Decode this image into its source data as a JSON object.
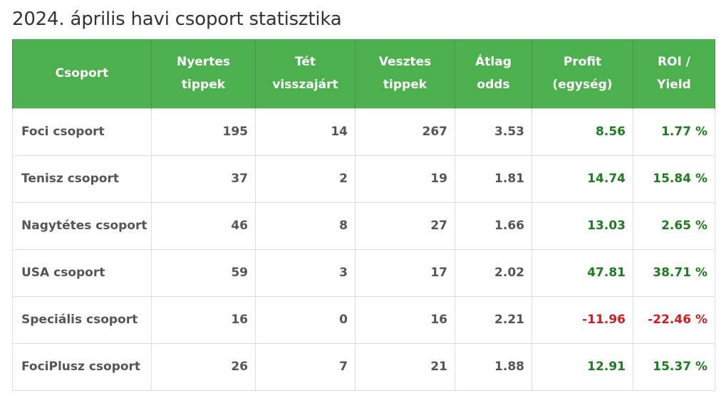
{
  "title": "2024. április havi csoport statisztika",
  "table": {
    "headers": [
      [
        "Csoport"
      ],
      [
        "Nyertes",
        "tippek"
      ],
      [
        "Tét",
        "visszajárt"
      ],
      [
        "Vesztes",
        "tippek"
      ],
      [
        "Átlag",
        "odds"
      ],
      [
        "Profit",
        "(egység)"
      ],
      [
        "ROI /",
        "Yield"
      ]
    ],
    "rows": [
      {
        "group": "Foci csoport",
        "won": "195",
        "void": "14",
        "lost": "267",
        "odds": "3.53",
        "profit": "8.56",
        "roi": "1.77 %",
        "status": "positive"
      },
      {
        "group": "Tenisz csoport",
        "won": "37",
        "void": "2",
        "lost": "19",
        "odds": "1.81",
        "profit": "14.74",
        "roi": "15.84 %",
        "status": "positive"
      },
      {
        "group": "Nagytétes csoport",
        "won": "46",
        "void": "8",
        "lost": "27",
        "odds": "1.66",
        "profit": "13.03",
        "roi": "2.65 %",
        "status": "positive"
      },
      {
        "group": "USA csoport",
        "won": "59",
        "void": "3",
        "lost": "17",
        "odds": "2.02",
        "profit": "47.81",
        "roi": "38.71 %",
        "status": "positive"
      },
      {
        "group": "Speciális csoport",
        "won": "16",
        "void": "0",
        "lost": "16",
        "odds": "2.21",
        "profit": "-11.96",
        "roi": "-22.46 %",
        "status": "negative"
      },
      {
        "group": "FociPlusz csoport",
        "won": "26",
        "void": "7",
        "lost": "21",
        "odds": "1.88",
        "profit": "12.91",
        "roi": "15.37 %",
        "status": "positive"
      }
    ]
  },
  "colors": {
    "header_bg": "#4cb04f",
    "positive": "#1b7d1b",
    "negative": "#d61a1a"
  }
}
